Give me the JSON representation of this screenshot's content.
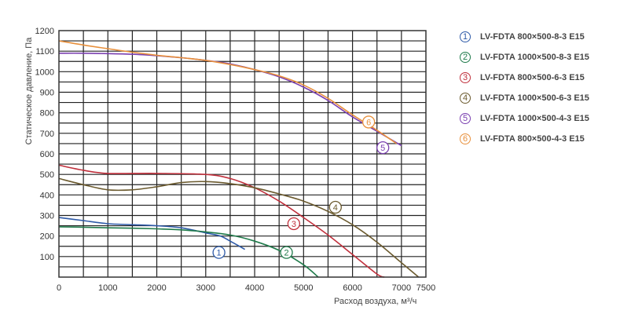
{
  "chart_data": {
    "type": "line",
    "xlabel": "Расход воздуха, м³/ч",
    "ylabel": "Статическое давление, Па",
    "xlim": [
      0,
      7500
    ],
    "ylim": [
      0,
      1200
    ],
    "xticks": [
      0,
      1000,
      2000,
      3000,
      4000,
      5000,
      6000,
      7000,
      7500
    ],
    "yticks": [
      100,
      200,
      300,
      400,
      500,
      600,
      700,
      800,
      900,
      1000,
      1100,
      1200
    ],
    "grid": true,
    "legend_position": "right",
    "series": [
      {
        "num": "1",
        "name": "LV-FDTA 800×500-8-3 E15",
        "color": "#2e5aa8",
        "x": [
          0,
          500,
          1000,
          1500,
          2000,
          2500,
          3000,
          3300,
          3500,
          3800
        ],
        "y": [
          290,
          275,
          260,
          255,
          250,
          240,
          215,
          200,
          175,
          135
        ],
        "marker": {
          "x": 3270,
          "y": 120
        }
      },
      {
        "num": "2",
        "name": "LV-FDTA 1000×500-8-3 E15",
        "color": "#1f7a4a",
        "x": [
          0,
          500,
          1000,
          1500,
          2000,
          2500,
          3000,
          3500,
          4000,
          4500,
          5000,
          5300
        ],
        "y": [
          245,
          243,
          240,
          238,
          235,
          230,
          220,
          205,
          175,
          130,
          60,
          0
        ],
        "marker": {
          "x": 4650,
          "y": 120
        }
      },
      {
        "num": "3",
        "name": "LV-FDTA 800×500-6-3 E15",
        "color": "#c0303c",
        "x": [
          0,
          500,
          1000,
          2000,
          3000,
          3500,
          4000,
          4500,
          5000,
          5500,
          6000,
          6500,
          6650
        ],
        "y": [
          545,
          520,
          505,
          505,
          500,
          480,
          435,
          370,
          290,
          205,
          110,
          15,
          0
        ],
        "marker": {
          "x": 4800,
          "y": 260
        }
      },
      {
        "num": "4",
        "name": "LV-FDTA 1000×500-6-3 E15",
        "color": "#6b5a2e",
        "x": [
          0,
          500,
          1000,
          1500,
          2000,
          2500,
          3000,
          3500,
          4000,
          4500,
          5000,
          5500,
          6000,
          6500,
          7000,
          7350
        ],
        "y": [
          480,
          450,
          425,
          425,
          440,
          460,
          465,
          455,
          435,
          405,
          370,
          320,
          255,
          170,
          70,
          0
        ],
        "marker": {
          "x": 5650,
          "y": 340
        }
      },
      {
        "num": "5",
        "name": "LV-FDTA 1000×500-4-3 E15",
        "color": "#7a3fb0",
        "x": [
          0,
          500,
          1000,
          1500,
          2000,
          2500,
          3000,
          3500,
          4000,
          4500,
          5000,
          5500,
          6000,
          6500,
          7000
        ],
        "y": [
          1090,
          1090,
          1088,
          1085,
          1078,
          1068,
          1055,
          1038,
          1010,
          975,
          925,
          860,
          780,
          710,
          640
        ],
        "marker": {
          "x": 6620,
          "y": 630
        }
      },
      {
        "num": "6",
        "name": "LV-FDTA 800×500-4-3 E15",
        "color": "#e8903c",
        "x": [
          0,
          500,
          1000,
          1500,
          2000,
          2500,
          3000,
          3500,
          4000,
          4500,
          5000,
          5500,
          6000,
          6500,
          6900
        ],
        "y": [
          1150,
          1130,
          1112,
          1095,
          1080,
          1068,
          1055,
          1035,
          1010,
          980,
          935,
          870,
          790,
          715,
          650
        ],
        "marker": {
          "x": 6330,
          "y": 755
        }
      }
    ]
  }
}
